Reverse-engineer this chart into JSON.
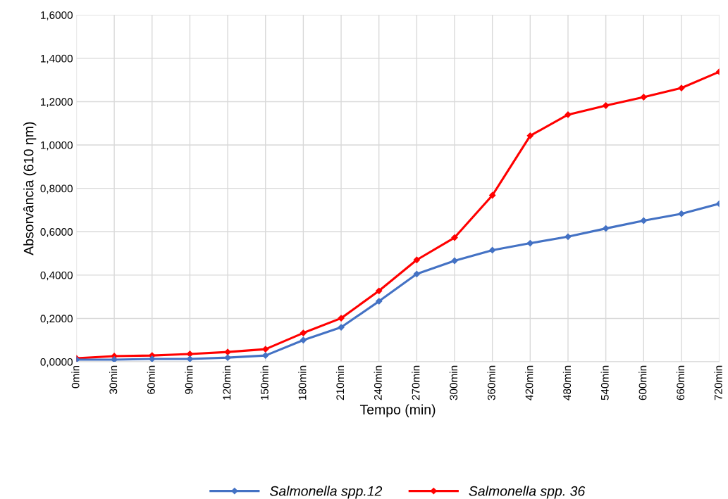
{
  "chart_data": {
    "type": "line",
    "xlabel": "Tempo (min)",
    "ylabel": "Absorvância (610 ηm)",
    "categories": [
      "0min",
      "30min",
      "60min",
      "90min",
      "120min",
      "150min",
      "180min",
      "210min",
      "240min",
      "270min",
      "300min",
      "360min",
      "420min",
      "480min",
      "540min",
      "600min",
      "660min",
      "720min"
    ],
    "series": [
      {
        "name": "Salmonella spp.12",
        "color": "#4472c4",
        "values": [
          0.01,
          0.01,
          0.013,
          0.013,
          0.019,
          0.029,
          0.1,
          0.159,
          0.279,
          0.405,
          0.466,
          0.515,
          0.547,
          0.577,
          0.615,
          0.651,
          0.683,
          0.729
        ]
      },
      {
        "name": "Salmonella spp. 36",
        "color": "#ff0000",
        "values": [
          0.016,
          0.026,
          0.029,
          0.036,
          0.045,
          0.058,
          0.133,
          0.201,
          0.327,
          0.47,
          0.573,
          0.768,
          1.043,
          1.14,
          1.182,
          1.221,
          1.263,
          1.338
        ]
      }
    ],
    "ylim": [
      0,
      1.6
    ],
    "yticks": [
      {
        "value": 0,
        "label": "0,0000"
      },
      {
        "value": 0.2,
        "label": "0,2000"
      },
      {
        "value": 0.4,
        "label": "0,4000"
      },
      {
        "value": 0.6,
        "label": "0,6000"
      },
      {
        "value": 0.8,
        "label": "0,8000"
      },
      {
        "value": 1.0,
        "label": "1,0000"
      },
      {
        "value": 1.2,
        "label": "1,2000"
      },
      {
        "value": 1.4,
        "label": "1,4000"
      },
      {
        "value": 1.6,
        "label": "1,6000"
      }
    ],
    "grid": true,
    "legend": "bottom",
    "marker": "diamond",
    "line_style": "solid"
  }
}
